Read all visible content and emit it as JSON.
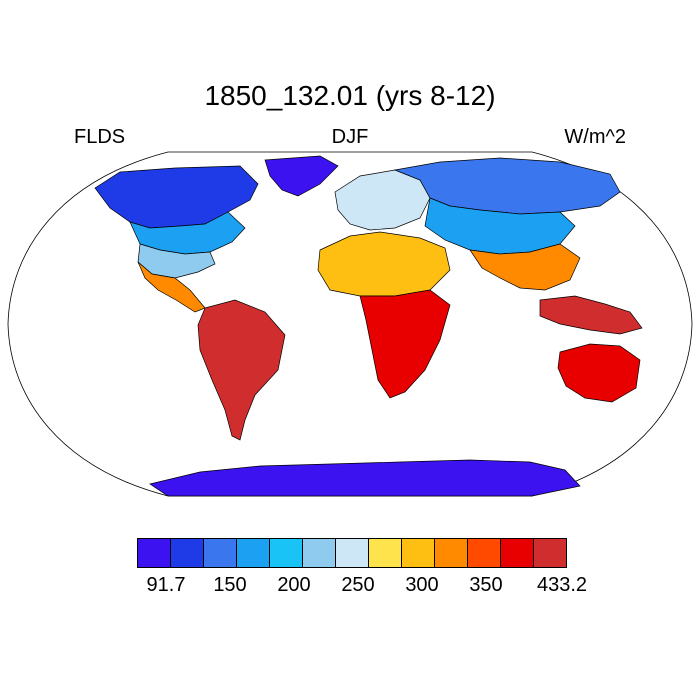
{
  "title": "1850_132.01 (yrs 8-12)",
  "left_label": "FLDS",
  "center_label": "DJF",
  "right_label": "W/m^2",
  "colors": {
    "land_contour": "#000000",
    "ocean": "#ffffff"
  },
  "colorbar": {
    "colors": [
      "#3c12f0",
      "#1f3be8",
      "#3a76ee",
      "#1ba0f2",
      "#19c3f5",
      "#8fcbef",
      "#cde7f7",
      "#ffe34d",
      "#ffbe12",
      "#ff8a00",
      "#ff4a00",
      "#e80000",
      "#d02e2e"
    ],
    "tick_labels": [
      "91.7",
      "150",
      "200",
      "250",
      "300",
      "350",
      "433.2"
    ]
  },
  "map_regions": [
    {
      "name": "north-america-north",
      "color": "#1f3be8"
    },
    {
      "name": "north-america-mid",
      "color": "#1ba0f2"
    },
    {
      "name": "north-america-south",
      "color": "#8fcbef"
    },
    {
      "name": "mexico",
      "color": "#ff8a00"
    },
    {
      "name": "south-america",
      "color": "#d02e2e"
    },
    {
      "name": "greenland",
      "color": "#3c12f0"
    },
    {
      "name": "europe",
      "color": "#cde7f7"
    },
    {
      "name": "siberia",
      "color": "#3a76ee"
    },
    {
      "name": "central-asia",
      "color": "#1ba0f2"
    },
    {
      "name": "north-africa",
      "color": "#ffbe12"
    },
    {
      "name": "sub-saharan-africa",
      "color": "#e80000"
    },
    {
      "name": "south-asia",
      "color": "#ff8a00"
    },
    {
      "name": "maritime-continent",
      "color": "#d02e2e"
    },
    {
      "name": "australia",
      "color": "#e80000"
    },
    {
      "name": "antarctica",
      "color": "#3c12f0"
    }
  ]
}
